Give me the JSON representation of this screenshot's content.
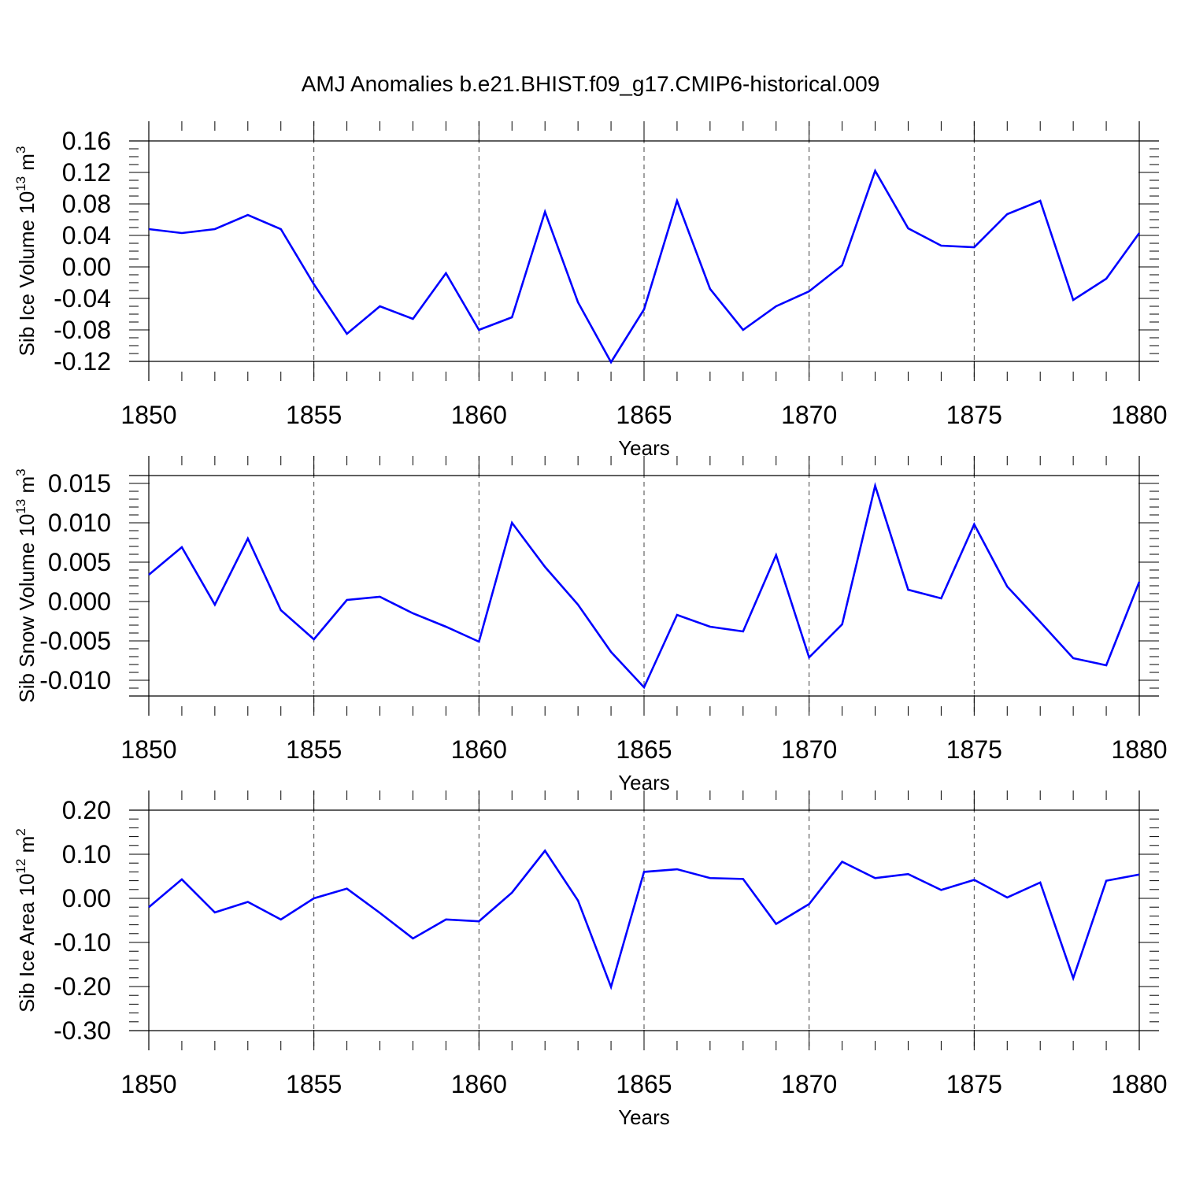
{
  "figure_title": "AMJ Anomalies b.e21.BHIST.f09_g17.CMIP6-historical.009",
  "line_color": "#0000ff",
  "chart_data": [
    {
      "type": "line",
      "title": "",
      "xlabel": "Years",
      "ylabel_main": "Sib Ice Volume 10",
      "ylabel_exp": "13",
      "ylabel_unit": " m",
      "ylabel_unit_exp": "3",
      "xlim": [
        1850,
        1880
      ],
      "ylim": [
        -0.12,
        0.16
      ],
      "grid": "vertical dashed at major x ticks",
      "x_ticks": [
        1850,
        1855,
        1860,
        1865,
        1870,
        1875,
        1880
      ],
      "x_tick_labels": [
        "1850",
        "1855",
        "1860",
        "1865",
        "1870",
        "1875",
        "1880"
      ],
      "y_ticks": [
        0.16,
        0.12,
        0.08,
        0.04,
        0.0,
        -0.04,
        -0.08,
        -0.12
      ],
      "y_tick_labels": [
        "0.16",
        "0.12",
        "0.08",
        "0.04",
        "0.00",
        "-0.04",
        "-0.08",
        "-0.12"
      ],
      "x": [
        1850,
        1851,
        1852,
        1853,
        1854,
        1855,
        1856,
        1857,
        1858,
        1859,
        1860,
        1861,
        1862,
        1863,
        1864,
        1865,
        1866,
        1867,
        1868,
        1869,
        1870,
        1871,
        1872,
        1873,
        1874,
        1875,
        1876,
        1877,
        1878,
        1879,
        1880
      ],
      "series": [
        {
          "values": [
            0.048,
            0.043,
            0.048,
            0.066,
            0.048,
            -0.022,
            -0.085,
            -0.05,
            -0.066,
            -0.008,
            -0.08,
            -0.064,
            0.07,
            -0.045,
            -0.121,
            -0.054,
            0.084,
            -0.028,
            -0.08,
            -0.05,
            -0.031,
            0.002,
            0.122,
            0.049,
            0.027,
            0.025,
            0.067,
            0.084,
            -0.042,
            -0.015,
            0.043
          ]
        }
      ]
    },
    {
      "type": "line",
      "title": "",
      "xlabel": "Years",
      "ylabel_main": "Sib Snow Volume 10",
      "ylabel_exp": "13",
      "ylabel_unit": " m",
      "ylabel_unit_exp": "3",
      "xlim": [
        1850,
        1880
      ],
      "ylim": [
        -0.012,
        0.016
      ],
      "grid": "vertical dashed at major x ticks",
      "x_ticks": [
        1850,
        1855,
        1860,
        1865,
        1870,
        1875,
        1880
      ],
      "x_tick_labels": [
        "1850",
        "1855",
        "1860",
        "1865",
        "1870",
        "1875",
        "1880"
      ],
      "y_ticks": [
        0.015,
        0.01,
        0.005,
        0.0,
        -0.005,
        -0.01
      ],
      "y_tick_labels": [
        "0.015",
        "0.010",
        "0.005",
        "0.000",
        "-0.005",
        "-0.010"
      ],
      "x": [
        1850,
        1851,
        1852,
        1853,
        1854,
        1855,
        1856,
        1857,
        1858,
        1859,
        1860,
        1861,
        1862,
        1863,
        1864,
        1865,
        1866,
        1867,
        1868,
        1869,
        1870,
        1871,
        1872,
        1873,
        1874,
        1875,
        1876,
        1877,
        1878,
        1879,
        1880
      ],
      "series": [
        {
          "values": [
            0.0034,
            0.0069,
            -0.0004,
            0.008,
            -0.0011,
            -0.0048,
            0.0002,
            0.0006,
            -0.0015,
            -0.0032,
            -0.0051,
            0.01,
            0.0044,
            -0.0004,
            -0.0064,
            -0.0109,
            -0.0017,
            -0.0032,
            -0.0038,
            0.0059,
            -0.0071,
            -0.0029,
            0.0147,
            0.0015,
            0.0004,
            0.0098,
            0.0019,
            -0.0026,
            -0.0072,
            -0.0081,
            0.0025
          ]
        }
      ]
    },
    {
      "type": "line",
      "title": "",
      "xlabel": "Years",
      "ylabel_main": "Sib Ice Area 10",
      "ylabel_exp": "12",
      "ylabel_unit": " m",
      "ylabel_unit_exp": "2",
      "xlim": [
        1850,
        1880
      ],
      "ylim": [
        -0.3,
        0.2
      ],
      "grid": "vertical dashed at major x ticks",
      "x_ticks": [
        1850,
        1855,
        1860,
        1865,
        1870,
        1875,
        1880
      ],
      "x_tick_labels": [
        "1850",
        "1855",
        "1860",
        "1865",
        "1870",
        "1875",
        "1880"
      ],
      "y_ticks": [
        0.2,
        0.1,
        0.0,
        -0.1,
        -0.2,
        -0.3
      ],
      "y_tick_labels": [
        "0.20",
        "0.10",
        "0.00",
        "-0.10",
        "-0.20",
        "-0.30"
      ],
      "x": [
        1850,
        1851,
        1852,
        1853,
        1854,
        1855,
        1856,
        1857,
        1858,
        1859,
        1860,
        1861,
        1862,
        1863,
        1864,
        1865,
        1866,
        1867,
        1868,
        1869,
        1870,
        1871,
        1872,
        1873,
        1874,
        1875,
        1876,
        1877,
        1878,
        1879,
        1880
      ],
      "series": [
        {
          "values": [
            -0.02,
            0.043,
            -0.032,
            -0.008,
            -0.048,
            0.0,
            0.022,
            -0.033,
            -0.091,
            -0.048,
            -0.052,
            0.013,
            0.108,
            -0.005,
            -0.201,
            0.06,
            0.066,
            0.046,
            0.044,
            -0.058,
            -0.013,
            0.083,
            0.046,
            0.055,
            0.019,
            0.042,
            0.002,
            0.036,
            -0.181,
            0.04,
            0.054
          ]
        }
      ]
    }
  ]
}
